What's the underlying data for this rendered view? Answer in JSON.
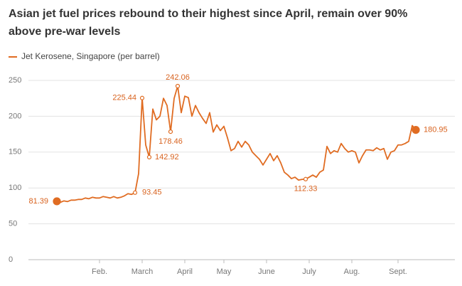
{
  "chart_data": {
    "type": "line",
    "title": "Asian jet fuel prices rebound to their highest since April, remain over 90%",
    "title_line2": "above pre-war levels",
    "categories": [
      null,
      null,
      null,
      null,
      null,
      null,
      null,
      null,
      null,
      null,
      null,
      null,
      "Feb.",
      null,
      null,
      null,
      null,
      null,
      null,
      null,
      null,
      null,
      null,
      null,
      "March",
      null,
      null,
      null,
      null,
      null,
      null,
      null,
      null,
      null,
      null,
      null,
      "April",
      null,
      null,
      null,
      null,
      null,
      null,
      null,
      null,
      null,
      null,
      "May",
      null,
      null,
      null,
      null,
      null,
      null,
      null,
      null,
      null,
      null,
      null,
      "June",
      null,
      null,
      null,
      null,
      null,
      null,
      null,
      null,
      null,
      null,
      null,
      "July",
      null,
      null,
      null,
      null,
      null,
      null,
      null,
      null,
      null,
      null,
      null,
      "Aug.",
      null,
      null,
      null,
      null,
      null,
      null,
      null,
      null,
      null,
      null,
      null,
      null,
      "Sept.",
      null,
      null,
      null,
      null,
      null
    ],
    "series": [
      {
        "name": "Jet Kerosene, Singapore (per barrel)",
        "color": "#e06c22",
        "values": [
          81.39,
          80,
          82,
          81,
          83,
          83,
          84,
          84,
          86,
          85,
          87,
          86,
          86,
          88,
          87,
          86,
          88,
          86,
          87,
          89,
          92,
          91,
          93.45,
          120,
          225.44,
          160,
          142.92,
          210,
          195,
          200,
          225,
          215,
          178.46,
          225,
          242.06,
          205,
          228,
          226,
          200,
          215,
          205,
          197,
          190,
          205,
          178,
          188,
          180,
          186,
          170,
          152,
          155,
          165,
          157,
          165,
          160,
          150,
          145,
          140,
          132,
          140,
          148,
          138,
          145,
          135,
          122,
          118,
          113,
          115,
          111,
          112,
          112.33,
          115,
          118,
          115,
          122,
          125,
          158,
          148,
          152,
          150,
          162,
          155,
          150,
          152,
          150,
          135,
          145,
          153,
          153,
          152,
          156,
          153,
          155,
          140,
          150,
          152,
          160,
          160,
          162,
          165,
          187,
          180.95
        ]
      }
    ],
    "labeled_points": [
      0,
      22,
      24,
      26,
      32,
      34,
      70,
      101
    ],
    "ylim": [
      0,
      250
    ],
    "yticks": [
      0,
      50,
      100,
      150,
      200,
      250
    ],
    "grid": true
  }
}
